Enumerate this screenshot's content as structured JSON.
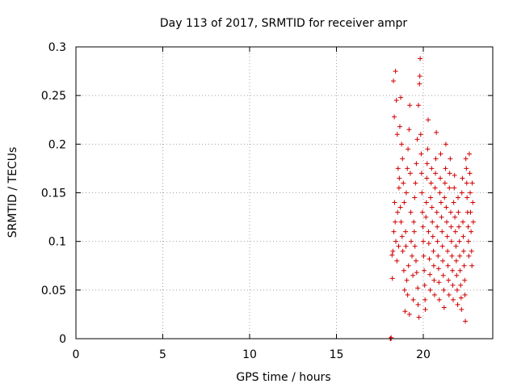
{
  "chart_data": {
    "type": "scatter",
    "title": "Day 113 of 2017, SRMTID for receiver ampr",
    "xlabel": "GPS time / hours",
    "ylabel": "SRMTID / TECUs",
    "xlim": [
      0,
      24
    ],
    "ylim": [
      0,
      0.3
    ],
    "x_ticks": [
      0,
      5,
      10,
      15,
      20
    ],
    "x_tick_labels": [
      "0",
      "5",
      "10",
      "15",
      "20"
    ],
    "y_ticks": [
      0,
      0.05,
      0.1,
      0.15,
      0.2,
      0.25,
      0.3
    ],
    "y_tick_labels": [
      "0",
      "0.05",
      "0.1",
      "0.15",
      "0.2",
      "0.25",
      "0.3"
    ],
    "grid": true,
    "marker": "plus",
    "color": "#d00000",
    "series": [
      {
        "points": [
          [
            18.1,
            0.0
          ],
          [
            18.12,
            0.0
          ],
          [
            18.15,
            0.001
          ],
          [
            18.14,
            0.0
          ],
          [
            18.2,
            0.086
          ],
          [
            18.25,
            0.09
          ],
          [
            18.3,
            0.11
          ],
          [
            18.22,
            0.062
          ],
          [
            18.35,
            0.14
          ],
          [
            18.28,
            0.265
          ],
          [
            18.4,
            0.275
          ],
          [
            18.45,
            0.245
          ],
          [
            18.33,
            0.228
          ],
          [
            18.5,
            0.21
          ],
          [
            18.55,
            0.175
          ],
          [
            18.6,
            0.155
          ],
          [
            18.38,
            0.12
          ],
          [
            18.42,
            0.1
          ],
          [
            18.48,
            0.08
          ],
          [
            18.52,
            0.13
          ],
          [
            18.58,
            0.095
          ],
          [
            18.62,
            0.165
          ],
          [
            18.65,
            0.218
          ],
          [
            18.7,
            0.248
          ],
          [
            18.75,
            0.2
          ],
          [
            18.8,
            0.185
          ],
          [
            18.85,
            0.16
          ],
          [
            18.9,
            0.14
          ],
          [
            18.72,
            0.12
          ],
          [
            18.78,
            0.105
          ],
          [
            18.82,
            0.09
          ],
          [
            18.88,
            0.07
          ],
          [
            18.92,
            0.05
          ],
          [
            18.95,
            0.028
          ],
          [
            18.68,
            0.135
          ],
          [
            18.98,
            0.11
          ],
          [
            19.0,
            0.095
          ],
          [
            19.05,
            0.06
          ],
          [
            19.1,
            0.045
          ],
          [
            19.15,
            0.075
          ],
          [
            19.02,
            0.15
          ],
          [
            19.08,
            0.175
          ],
          [
            19.12,
            0.195
          ],
          [
            19.18,
            0.215
          ],
          [
            19.22,
            0.24
          ],
          [
            19.25,
            0.17
          ],
          [
            19.28,
            0.13
          ],
          [
            19.3,
            0.1
          ],
          [
            19.35,
            0.085
          ],
          [
            19.4,
            0.065
          ],
          [
            19.42,
            0.04
          ],
          [
            19.2,
            0.025
          ],
          [
            19.45,
            0.12
          ],
          [
            19.5,
            0.145
          ],
          [
            19.55,
            0.16
          ],
          [
            19.6,
            0.18
          ],
          [
            19.65,
            0.205
          ],
          [
            19.48,
            0.11
          ],
          [
            19.52,
            0.095
          ],
          [
            19.58,
            0.08
          ],
          [
            19.62,
            0.068
          ],
          [
            19.68,
            0.052
          ],
          [
            19.7,
            0.035
          ],
          [
            19.75,
            0.022
          ],
          [
            19.72,
            0.24
          ],
          [
            19.78,
            0.262
          ],
          [
            19.8,
            0.27
          ],
          [
            19.82,
            0.288
          ],
          [
            19.85,
            0.21
          ],
          [
            19.88,
            0.19
          ],
          [
            19.9,
            0.17
          ],
          [
            19.92,
            0.15
          ],
          [
            19.95,
            0.13
          ],
          [
            19.98,
            0.115
          ],
          [
            20.0,
            0.1
          ],
          [
            20.02,
            0.085
          ],
          [
            20.05,
            0.07
          ],
          [
            20.08,
            0.055
          ],
          [
            20.1,
            0.04
          ],
          [
            20.12,
            0.03
          ],
          [
            20.15,
            0.125
          ],
          [
            20.18,
            0.14
          ],
          [
            20.2,
            0.165
          ],
          [
            20.22,
            0.18
          ],
          [
            20.25,
            0.195
          ],
          [
            20.28,
            0.225
          ],
          [
            20.3,
            0.11
          ],
          [
            20.32,
            0.098
          ],
          [
            20.35,
            0.082
          ],
          [
            20.38,
            0.066
          ],
          [
            20.4,
            0.05
          ],
          [
            20.42,
            0.145
          ],
          [
            20.45,
            0.16
          ],
          [
            20.48,
            0.175
          ],
          [
            20.5,
            0.135
          ],
          [
            20.52,
            0.12
          ],
          [
            20.55,
            0.105
          ],
          [
            20.58,
            0.09
          ],
          [
            20.6,
            0.075
          ],
          [
            20.62,
            0.06
          ],
          [
            20.65,
            0.045
          ],
          [
            20.68,
            0.155
          ],
          [
            20.7,
            0.17
          ],
          [
            20.72,
            0.185
          ],
          [
            20.75,
            0.212
          ],
          [
            20.78,
            0.13
          ],
          [
            20.8,
            0.115
          ],
          [
            20.82,
            0.1
          ],
          [
            20.85,
            0.085
          ],
          [
            20.88,
            0.072
          ],
          [
            20.9,
            0.058
          ],
          [
            20.92,
            0.04
          ],
          [
            20.95,
            0.15
          ],
          [
            20.98,
            0.165
          ],
          [
            21.0,
            0.19
          ],
          [
            21.02,
            0.14
          ],
          [
            21.05,
            0.125
          ],
          [
            21.08,
            0.11
          ],
          [
            21.1,
            0.095
          ],
          [
            21.12,
            0.08
          ],
          [
            21.15,
            0.065
          ],
          [
            21.18,
            0.05
          ],
          [
            21.2,
            0.032
          ],
          [
            21.22,
            0.145
          ],
          [
            21.25,
            0.16
          ],
          [
            21.28,
            0.175
          ],
          [
            21.3,
            0.2
          ],
          [
            21.32,
            0.135
          ],
          [
            21.35,
            0.12
          ],
          [
            21.38,
            0.105
          ],
          [
            21.4,
            0.09
          ],
          [
            21.42,
            0.075
          ],
          [
            21.45,
            0.06
          ],
          [
            21.48,
            0.045
          ],
          [
            21.5,
            0.155
          ],
          [
            21.52,
            0.17
          ],
          [
            21.55,
            0.185
          ],
          [
            21.58,
            0.13
          ],
          [
            21.6,
            0.115
          ],
          [
            21.62,
            0.1
          ],
          [
            21.65,
            0.085
          ],
          [
            21.68,
            0.07
          ],
          [
            21.7,
            0.055
          ],
          [
            21.72,
            0.04
          ],
          [
            21.75,
            0.14
          ],
          [
            21.78,
            0.155
          ],
          [
            21.8,
            0.168
          ],
          [
            21.82,
            0.125
          ],
          [
            21.85,
            0.11
          ],
          [
            21.88,
            0.095
          ],
          [
            21.9,
            0.08
          ],
          [
            21.92,
            0.065
          ],
          [
            21.95,
            0.05
          ],
          [
            21.98,
            0.035
          ],
          [
            22.0,
            0.145
          ],
          [
            22.02,
            0.13
          ],
          [
            22.05,
            0.115
          ],
          [
            22.08,
            0.1
          ],
          [
            22.1,
            0.085
          ],
          [
            22.12,
            0.07
          ],
          [
            22.15,
            0.055
          ],
          [
            22.18,
            0.042
          ],
          [
            22.2,
            0.03
          ],
          [
            22.22,
            0.15
          ],
          [
            22.25,
            0.165
          ],
          [
            22.28,
            0.12
          ],
          [
            22.3,
            0.105
          ],
          [
            22.32,
            0.09
          ],
          [
            22.35,
            0.075
          ],
          [
            22.38,
            0.06
          ],
          [
            22.4,
            0.045
          ],
          [
            22.42,
            0.018
          ],
          [
            22.45,
            0.185
          ],
          [
            22.48,
            0.175
          ],
          [
            22.5,
            0.16
          ],
          [
            22.52,
            0.145
          ],
          [
            22.55,
            0.13
          ],
          [
            22.58,
            0.115
          ],
          [
            22.6,
            0.1
          ],
          [
            22.62,
            0.085
          ],
          [
            22.65,
            0.19
          ],
          [
            22.68,
            0.17
          ],
          [
            22.7,
            0.15
          ],
          [
            22.72,
            0.13
          ],
          [
            22.75,
            0.11
          ],
          [
            22.78,
            0.09
          ],
          [
            22.8,
            0.075
          ],
          [
            22.82,
            0.16
          ],
          [
            22.85,
            0.14
          ],
          [
            22.88,
            0.12
          ]
        ]
      }
    ]
  }
}
